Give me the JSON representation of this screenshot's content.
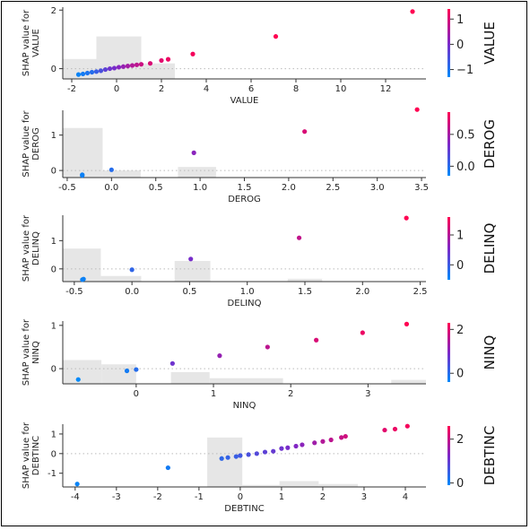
{
  "chart_data": [
    {
      "type": "scatter",
      "feature": "VALUE",
      "xlabel": "VALUE",
      "ylabel": "SHAP value for\nVALUE",
      "xlim": [
        -2.4,
        13.8
      ],
      "ylim": [
        -0.35,
        2.1
      ],
      "xticks": [
        "-2",
        "0",
        "2",
        "4",
        "6",
        "8",
        "10",
        "12"
      ],
      "xtick_vals": [
        -2,
        0,
        2,
        4,
        6,
        8,
        10,
        12
      ],
      "yticks": [
        "0",
        "2"
      ],
      "ytick_vals": [
        0,
        2
      ],
      "hist_bars": [
        [
          -2.4,
          -0.9,
          0.33
        ],
        [
          -0.9,
          1.1,
          1.1
        ],
        [
          1.1,
          2.6,
          0.18
        ]
      ],
      "colorbar": {
        "label": "VALUE",
        "ticks": [
          "1",
          "0",
          "−1"
        ],
        "tick_vals": [
          1,
          0,
          -1
        ],
        "range": [
          -1.3,
          1.4
        ]
      },
      "points": [
        [
          -1.7,
          -0.2,
          -1.2
        ],
        [
          -1.5,
          -0.18,
          -1.1
        ],
        [
          -1.3,
          -0.15,
          -1.0
        ],
        [
          -1.1,
          -0.12,
          -0.9
        ],
        [
          -0.9,
          -0.1,
          -0.7
        ],
        [
          -0.7,
          -0.07,
          -0.5
        ],
        [
          -0.5,
          -0.03,
          -0.3
        ],
        [
          -0.3,
          0.0,
          -0.1
        ],
        [
          -0.1,
          0.02,
          0.0
        ],
        [
          0.1,
          0.05,
          0.15
        ],
        [
          0.3,
          0.07,
          0.3
        ],
        [
          0.5,
          0.09,
          0.45
        ],
        [
          0.7,
          0.11,
          0.6
        ],
        [
          0.9,
          0.13,
          0.7
        ],
        [
          1.1,
          0.15,
          0.85
        ],
        [
          1.5,
          0.18,
          1.0
        ],
        [
          2.0,
          0.28,
          1.1
        ],
        [
          2.3,
          0.32,
          1.2
        ],
        [
          3.4,
          0.5,
          1.3
        ],
        [
          7.1,
          1.1,
          1.4
        ],
        [
          13.2,
          1.95,
          1.4
        ]
      ]
    },
    {
      "type": "scatter",
      "feature": "DEROG",
      "xlabel": "DEROG",
      "ylabel": "SHAP value for\nDEROG",
      "xlim": [
        -0.55,
        3.55
      ],
      "ylim": [
        -0.2,
        1.7
      ],
      "xticks": [
        "-0.5",
        "0.0",
        "0.5",
        "1.0",
        "1.5",
        "2.0",
        "2.5",
        "3.0",
        "3.5"
      ],
      "xtick_vals": [
        -0.5,
        0,
        0.5,
        1.0,
        1.5,
        2.0,
        2.5,
        3.0,
        3.5
      ],
      "yticks": [
        "0",
        "1"
      ],
      "ytick_vals": [
        0,
        1
      ],
      "hist_bars": [
        [
          -0.55,
          -0.1,
          1.2
        ],
        [
          -0.1,
          0.33,
          0.0
        ],
        [
          0.75,
          1.18,
          0.1
        ]
      ],
      "colorbar": {
        "label": "DEROG",
        "ticks": [
          "0.5",
          "0.0"
        ],
        "tick_vals": [
          0.5,
          0.0
        ],
        "range": [
          -0.15,
          0.85
        ]
      },
      "points": [
        [
          -0.33,
          -0.14,
          -0.1
        ],
        [
          -0.33,
          -0.12,
          -0.1
        ],
        [
          0.0,
          0.02,
          0.0
        ],
        [
          0.93,
          0.5,
          0.4
        ],
        [
          2.18,
          1.1,
          0.7
        ],
        [
          3.45,
          1.72,
          0.85
        ]
      ]
    },
    {
      "type": "scatter",
      "feature": "DELINQ",
      "xlabel": "DELINQ",
      "ylabel": "SHAP value for\nDELINQ",
      "xlim": [
        -0.6,
        2.55
      ],
      "ylim": [
        -0.45,
        1.9
      ],
      "xticks": [
        "-0.5",
        "0.0",
        "0.5",
        "1.0",
        "1.5",
        "2.0",
        "2.5"
      ],
      "xtick_vals": [
        -0.5,
        0,
        0.5,
        1.0,
        1.5,
        2.0,
        2.5
      ],
      "yticks": [
        "0",
        "1"
      ],
      "ytick_vals": [
        0,
        1
      ],
      "hist_bars": [
        [
          -0.6,
          -0.27,
          0.72
        ],
        [
          -0.27,
          0.08,
          -0.25
        ],
        [
          0.37,
          0.68,
          0.28
        ],
        [
          1.35,
          1.65,
          -0.35
        ]
      ],
      "colorbar": {
        "label": "DELINQ",
        "ticks": [
          "1",
          "0"
        ],
        "tick_vals": [
          1,
          0
        ],
        "range": [
          -0.5,
          1.6
        ]
      },
      "points": [
        [
          -0.43,
          -0.38,
          -0.4
        ],
        [
          -0.42,
          -0.36,
          -0.4
        ],
        [
          0.0,
          -0.03,
          -0.1
        ],
        [
          0.51,
          0.35,
          0.5
        ],
        [
          1.45,
          1.1,
          1.1
        ],
        [
          2.38,
          1.8,
          1.6
        ]
      ]
    },
    {
      "type": "scatter",
      "feature": "NINQ",
      "xlabel": "NINQ",
      "ylabel": "SHAP value for\nNINQ",
      "xlim": [
        -0.95,
        3.75
      ],
      "ylim": [
        -0.35,
        1.1
      ],
      "xticks": [
        "0",
        "1",
        "2",
        "3"
      ],
      "xtick_vals": [
        0,
        1,
        2,
        3
      ],
      "yticks": [
        "0",
        "1"
      ],
      "ytick_vals": [
        0,
        1
      ],
      "hist_bars": [
        [
          -0.95,
          -0.45,
          0.2
        ],
        [
          -0.45,
          0.0,
          0.1
        ],
        [
          0.45,
          0.95,
          -0.08
        ],
        [
          0.95,
          1.9,
          -0.22
        ],
        [
          3.3,
          3.75,
          -0.26
        ]
      ],
      "colorbar": {
        "label": "NINQ",
        "ticks": [
          "2",
          "0"
        ],
        "tick_vals": [
          2,
          0
        ],
        "range": [
          -0.4,
          2.3
        ]
      },
      "points": [
        [
          -0.75,
          -0.25,
          -0.4
        ],
        [
          -0.12,
          -0.05,
          -0.2
        ],
        [
          0.0,
          -0.02,
          0.0
        ],
        [
          0.47,
          0.12,
          0.8
        ],
        [
          1.08,
          0.3,
          1.2
        ],
        [
          1.7,
          0.5,
          1.6
        ],
        [
          2.33,
          0.66,
          1.9
        ],
        [
          2.93,
          0.83,
          2.1
        ],
        [
          3.5,
          1.03,
          2.3
        ]
      ]
    },
    {
      "type": "scatter",
      "feature": "DEBTINC",
      "xlabel": "DEBTINC",
      "ylabel": "SHAP value for\nDEBTINC",
      "xlim": [
        -4.3,
        4.5
      ],
      "ylim": [
        -1.7,
        1.5
      ],
      "xticks": [
        "-4",
        "-3",
        "-2",
        "-1",
        "0",
        "1",
        "2",
        "3",
        "4"
      ],
      "xtick_vals": [
        -4,
        -3,
        -2,
        -1,
        0,
        1,
        2,
        3,
        4
      ],
      "yticks": [
        "1",
        "0",
        "-1"
      ],
      "ytick_vals": [
        1,
        0,
        -1
      ],
      "hist_bars": [
        [
          -0.8,
          0.05,
          0.82
        ],
        [
          0.05,
          0.95,
          -1.6
        ],
        [
          0.95,
          1.9,
          -1.4
        ],
        [
          1.9,
          2.85,
          -1.55
        ]
      ],
      "colorbar": {
        "label": "DEBTINC",
        "ticks": [
          "2",
          "0"
        ],
        "tick_vals": [
          2,
          0
        ],
        "range": [
          -0.1,
          2.6
        ]
      },
      "points": [
        [
          -3.95,
          -1.55,
          0.0
        ],
        [
          -1.75,
          -0.72,
          0.1
        ],
        [
          -0.45,
          -0.25,
          0.4
        ],
        [
          -0.3,
          -0.2,
          0.45
        ],
        [
          -0.1,
          -0.15,
          0.5
        ],
        [
          0.0,
          -0.1,
          0.6
        ],
        [
          0.2,
          -0.05,
          0.7
        ],
        [
          0.4,
          0.0,
          0.8
        ],
        [
          0.6,
          0.08,
          0.9
        ],
        [
          0.8,
          0.12,
          1.0
        ],
        [
          1.0,
          0.26,
          1.1
        ],
        [
          1.15,
          0.3,
          1.2
        ],
        [
          1.35,
          0.38,
          1.3
        ],
        [
          1.5,
          0.45,
          1.4
        ],
        [
          1.8,
          0.55,
          1.6
        ],
        [
          2.0,
          0.62,
          1.8
        ],
        [
          2.2,
          0.7,
          1.9
        ],
        [
          2.45,
          0.82,
          2.0
        ],
        [
          2.55,
          0.88,
          2.1
        ],
        [
          3.5,
          1.2,
          2.3
        ],
        [
          3.75,
          1.25,
          2.4
        ],
        [
          4.05,
          1.4,
          2.5
        ]
      ]
    }
  ]
}
